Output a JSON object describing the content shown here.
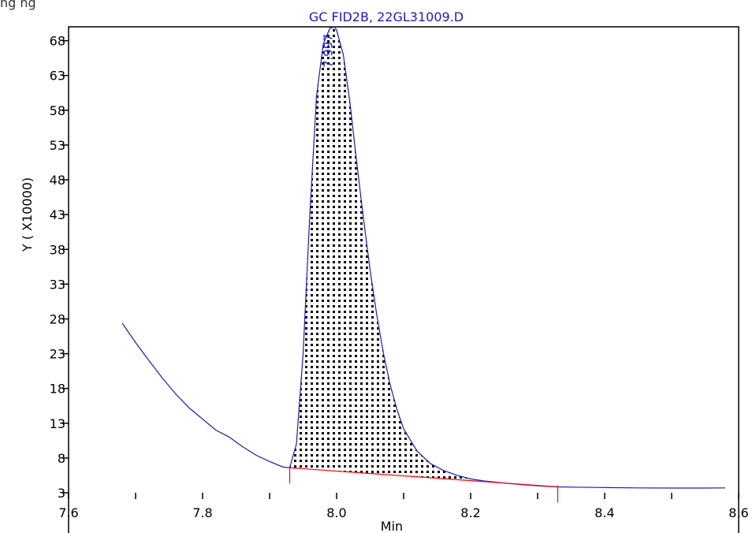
{
  "page": {
    "header_text": "ng    ng"
  },
  "chart_data": {
    "type": "line",
    "title": "GC FID2B, 22GL31009.D",
    "xlabel": "Min",
    "ylabel": "Y ( X10000)",
    "xlim": [
      7.6,
      8.6
    ],
    "ylim": [
      3,
      70
    ],
    "x_ticks": [
      7.6,
      7.8,
      8.0,
      8.2,
      8.4,
      8.6
    ],
    "x_tick_labels": [
      "7.6",
      "7.8",
      "8.0",
      "8.2",
      "8.4",
      "8.6"
    ],
    "y_ticks": [
      3,
      8,
      13,
      18,
      23,
      28,
      33,
      38,
      43,
      48,
      53,
      58,
      63,
      68
    ],
    "y_tick_labels": [
      "3",
      "8",
      "13",
      "18",
      "23",
      "28",
      "33",
      "38",
      "43",
      "48",
      "53",
      "58",
      "63",
      "68"
    ],
    "grid": false,
    "colors": {
      "trace": "#1a1acc",
      "baseline": "#ff0000",
      "title": "#1a1acc"
    },
    "series": [
      {
        "x": [
          7.68,
          7.7,
          7.72,
          7.74,
          7.76,
          7.78,
          7.8,
          7.82,
          7.84,
          7.85,
          7.86,
          7.88,
          7.9,
          7.92,
          7.93,
          7.94,
          7.95,
          7.96,
          7.97,
          7.98,
          7.99,
          7.997,
          8.0,
          8.01,
          8.02,
          8.03,
          8.04,
          8.05,
          8.06,
          8.07,
          8.08,
          8.09,
          8.1,
          8.12,
          8.14,
          8.16,
          8.18,
          8.2,
          8.22,
          8.25,
          8.28,
          8.3,
          8.33,
          8.36,
          8.4,
          8.45,
          8.5,
          8.55,
          8.58
        ],
        "y": [
          27.4,
          24.6,
          22.0,
          19.5,
          17.2,
          15.2,
          13.6,
          12.0,
          11.0,
          10.3,
          9.6,
          8.4,
          7.5,
          6.7,
          6.6,
          10.0,
          23.0,
          43.0,
          60.0,
          67.5,
          69.8,
          70.0,
          69.5,
          66.0,
          59.0,
          50.5,
          42.5,
          35.0,
          28.5,
          23.0,
          18.5,
          15.0,
          12.2,
          9.0,
          7.2,
          6.2,
          5.5,
          5.0,
          4.7,
          4.4,
          4.15,
          4.0,
          3.85,
          3.8,
          3.75,
          3.7,
          3.68,
          3.68,
          3.7
        ]
      }
    ],
    "peaks": [
      {
        "label": "7.997",
        "rt": 7.997,
        "apex_y": 70.0,
        "start_x": 7.93,
        "start_y": 6.6,
        "end_x": 8.33,
        "end_y": 3.85
      }
    ]
  }
}
